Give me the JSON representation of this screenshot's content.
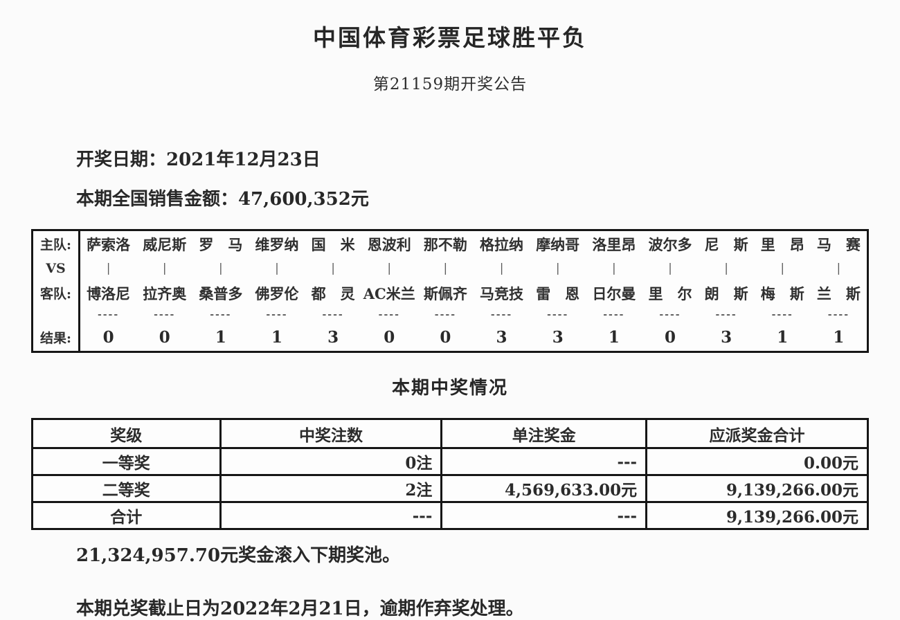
{
  "colors": {
    "ink": "#2b2b2b",
    "border": "#161616",
    "background": "#fbfbfb"
  },
  "header": {
    "title": "中国体育彩票足球胜平负",
    "subtitle": "第21159期开奖公告"
  },
  "info": {
    "draw_date": "开奖日期：2021年12月23日",
    "sales": "本期全国销售金额：47,600,352元"
  },
  "match_table": {
    "row_labels": {
      "home": "主队:",
      "vs": "VS",
      "away": "客队:",
      "result": "结果:"
    },
    "separator": "|",
    "dash": "----",
    "matches": [
      {
        "home": "萨索洛",
        "away": "博洛尼",
        "result": "0"
      },
      {
        "home": "威尼斯",
        "away": "拉齐奥",
        "result": "0"
      },
      {
        "home": "罗　马",
        "away": "桑普多",
        "result": "1"
      },
      {
        "home": "维罗纳",
        "away": "佛罗伦",
        "result": "1"
      },
      {
        "home": "国　米",
        "away": "都　灵",
        "result": "3"
      },
      {
        "home": "恩波利",
        "away": "AC米兰",
        "result": "0"
      },
      {
        "home": "那不勒",
        "away": "斯佩齐",
        "result": "0"
      },
      {
        "home": "格拉纳",
        "away": "马竞技",
        "result": "3"
      },
      {
        "home": "摩纳哥",
        "away": "雷　恩",
        "result": "3"
      },
      {
        "home": "洛里昂",
        "away": "日尔曼",
        "result": "1"
      },
      {
        "home": "波尔多",
        "away": "里　尔",
        "result": "0"
      },
      {
        "home": "尼　斯",
        "away": "朗　斯",
        "result": "3"
      },
      {
        "home": "里　昂",
        "away": "梅　斯",
        "result": "1"
      },
      {
        "home": "马　赛",
        "away": "兰　斯",
        "result": "1"
      }
    ]
  },
  "prize_section": {
    "title": "本期中奖情况",
    "columns": [
      "奖级",
      "中奖注数",
      "单注奖金",
      "应派奖金合计"
    ],
    "rows": [
      {
        "level": "一等奖",
        "count": "0注",
        "single": "---",
        "total": "0.00元"
      },
      {
        "level": "二等奖",
        "count": "2注",
        "single": "4,569,633.00元",
        "total": "9,139,266.00元"
      },
      {
        "level": "合计",
        "count": "---",
        "single": "---",
        "total": "9,139,266.00元"
      }
    ]
  },
  "footer": {
    "rollover": "21,324,957.70元奖金滚入下期奖池。",
    "deadline": "本期兑奖截止日为2022年2月21日，逾期作弃奖处理。"
  }
}
